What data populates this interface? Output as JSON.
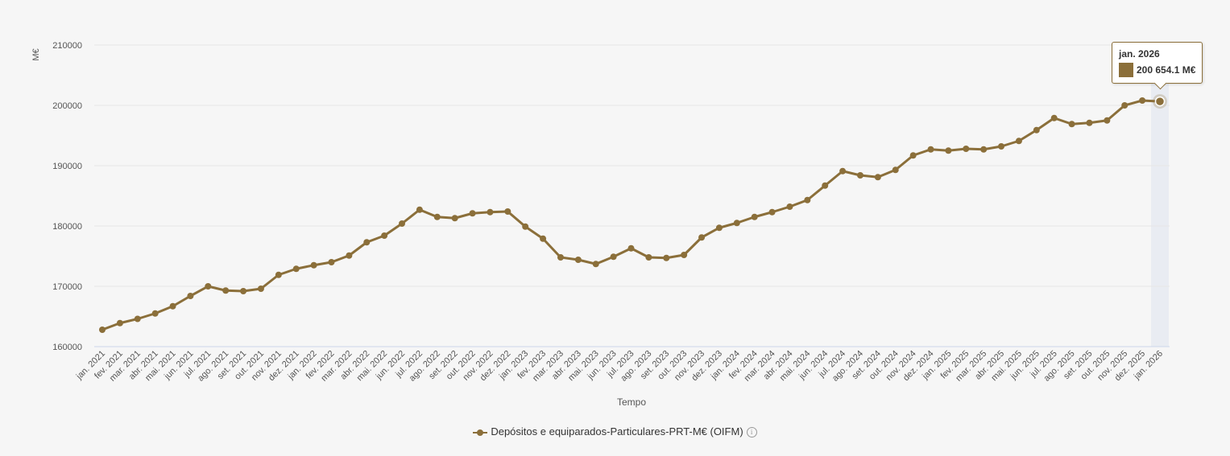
{
  "chart_data": {
    "type": "line",
    "title": "",
    "xlabel": "Tempo",
    "ylabel": "M€",
    "ylim": [
      160000,
      210000
    ],
    "yticks": [
      160000,
      170000,
      180000,
      190000,
      200000,
      210000
    ],
    "grid": true,
    "legend_position": "bottom",
    "color": "#8b6f3a",
    "categories": [
      "jan. 2021",
      "fev. 2021",
      "mar. 2021",
      "abr. 2021",
      "mai. 2021",
      "jun. 2021",
      "jul. 2021",
      "ago. 2021",
      "set. 2021",
      "out. 2021",
      "nov. 2021",
      "dez. 2021",
      "jan. 2022",
      "fev. 2022",
      "mar. 2022",
      "abr. 2022",
      "mai. 2022",
      "jun. 2022",
      "jul. 2022",
      "ago. 2022",
      "set. 2022",
      "out. 2022",
      "nov. 2022",
      "dez. 2022",
      "jan. 2023",
      "fev. 2023",
      "mar. 2023",
      "abr. 2023",
      "mai. 2023",
      "jun. 2023",
      "jul. 2023",
      "ago. 2023",
      "set. 2023",
      "out. 2023",
      "nov. 2023",
      "dez. 2023",
      "jan. 2024",
      "fev. 2024",
      "mar. 2024",
      "abr. 2024",
      "mai. 2024",
      "jun. 2024",
      "jul. 2024",
      "ago. 2024",
      "set. 2024",
      "out. 2024",
      "nov. 2024",
      "dez. 2024",
      "jan. 2025",
      "fev. 2025",
      "mar. 2025",
      "abr. 2025",
      "mai. 2025",
      "jun. 2025",
      "jul. 2025",
      "ago. 2025",
      "set. 2025",
      "out. 2025",
      "nov. 2025",
      "dez. 2025",
      "jan. 2026"
    ],
    "series": [
      {
        "name": "Depósitos e equiparados-Particulares-PRT-M€ (OIFM)",
        "values": [
          162800,
          163900,
          164600,
          165500,
          166700,
          168400,
          170000,
          169300,
          169200,
          169600,
          171900,
          172900,
          173500,
          174000,
          175100,
          177300,
          178400,
          180400,
          182700,
          181500,
          181300,
          182100,
          182300,
          182400,
          179900,
          177900,
          174800,
          174400,
          173700,
          174900,
          176300,
          174800,
          174700,
          175200,
          178100,
          179700,
          180500,
          181500,
          182300,
          183200,
          184300,
          186700,
          189100,
          188400,
          188100,
          189300,
          191700,
          192700,
          192500,
          192800,
          192700,
          193200,
          194100,
          195900,
          197900,
          196900,
          197100,
          197500,
          200000,
          200800,
          200654.1
        ]
      }
    ],
    "tooltip": {
      "title": "jan. 2026",
      "value": "200 654.1 M€"
    }
  }
}
